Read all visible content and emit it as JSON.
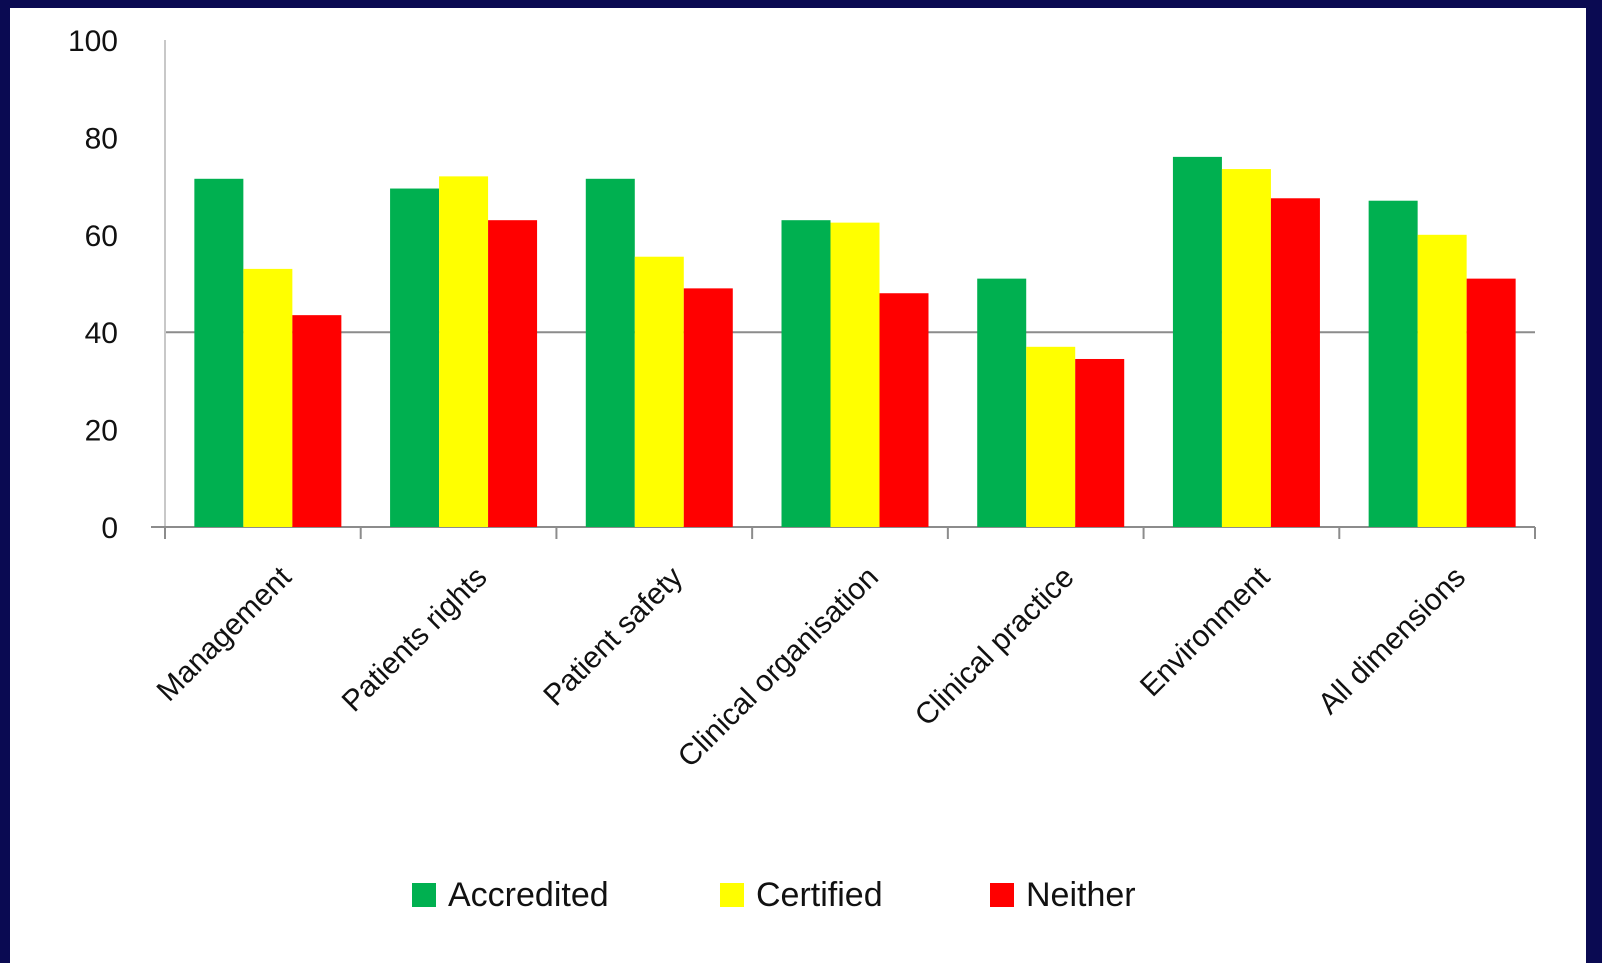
{
  "chart_data": {
    "type": "bar",
    "categories": [
      "Management",
      "Patients rights",
      "Patient safety",
      "Clinical organisation",
      "Clinical practice",
      "Environment",
      "All dimensions"
    ],
    "series": [
      {
        "name": "Accredited",
        "color": "#00b050",
        "values": [
          71.5,
          69.5,
          71.5,
          63,
          51,
          76,
          67
        ]
      },
      {
        "name": "Certified",
        "color": "#ffff00",
        "values": [
          53,
          72,
          55.5,
          62.5,
          37,
          73.5,
          60
        ]
      },
      {
        "name": "Neither",
        "color": "#ff0000",
        "values": [
          43.5,
          63,
          49,
          48,
          34.5,
          67.5,
          51
        ]
      }
    ],
    "y_ticks": [
      "0",
      "20",
      "40",
      "60",
      "80",
      "100"
    ],
    "ylim": [
      0,
      100
    ],
    "gridlines": [
      40
    ],
    "legend_position": "bottom",
    "title": "",
    "xlabel": "",
    "ylabel": ""
  }
}
